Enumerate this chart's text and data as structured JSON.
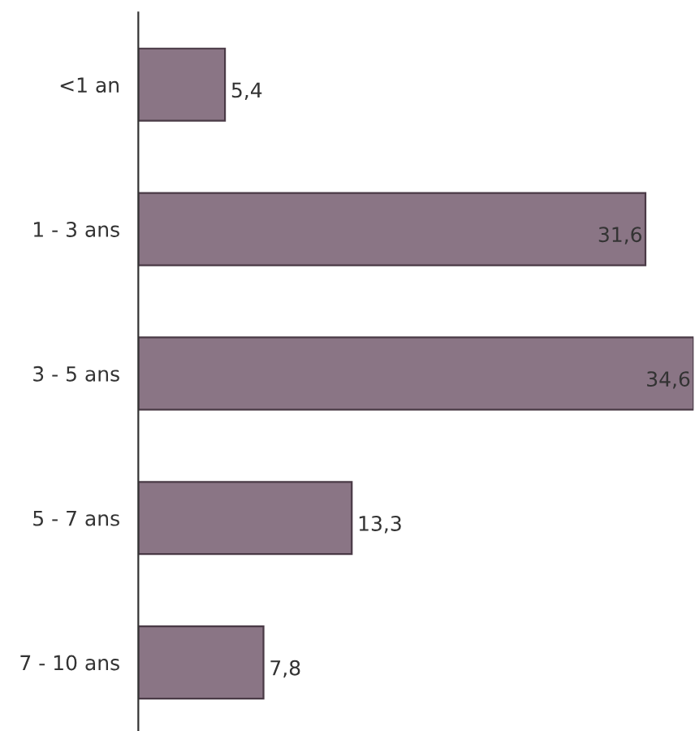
{
  "chart_data": {
    "type": "bar",
    "orientation": "horizontal",
    "categories": [
      "<1 an",
      "1 - 3 ans",
      "3 - 5 ans",
      "5 - 7 ans",
      "7 - 10 ans"
    ],
    "values": [
      5.4,
      31.6,
      34.6,
      13.3,
      7.8
    ],
    "value_labels": [
      "5,4",
      "31,6",
      "34,6",
      "13,3",
      "7,8"
    ],
    "color": "#8a7585"
  }
}
